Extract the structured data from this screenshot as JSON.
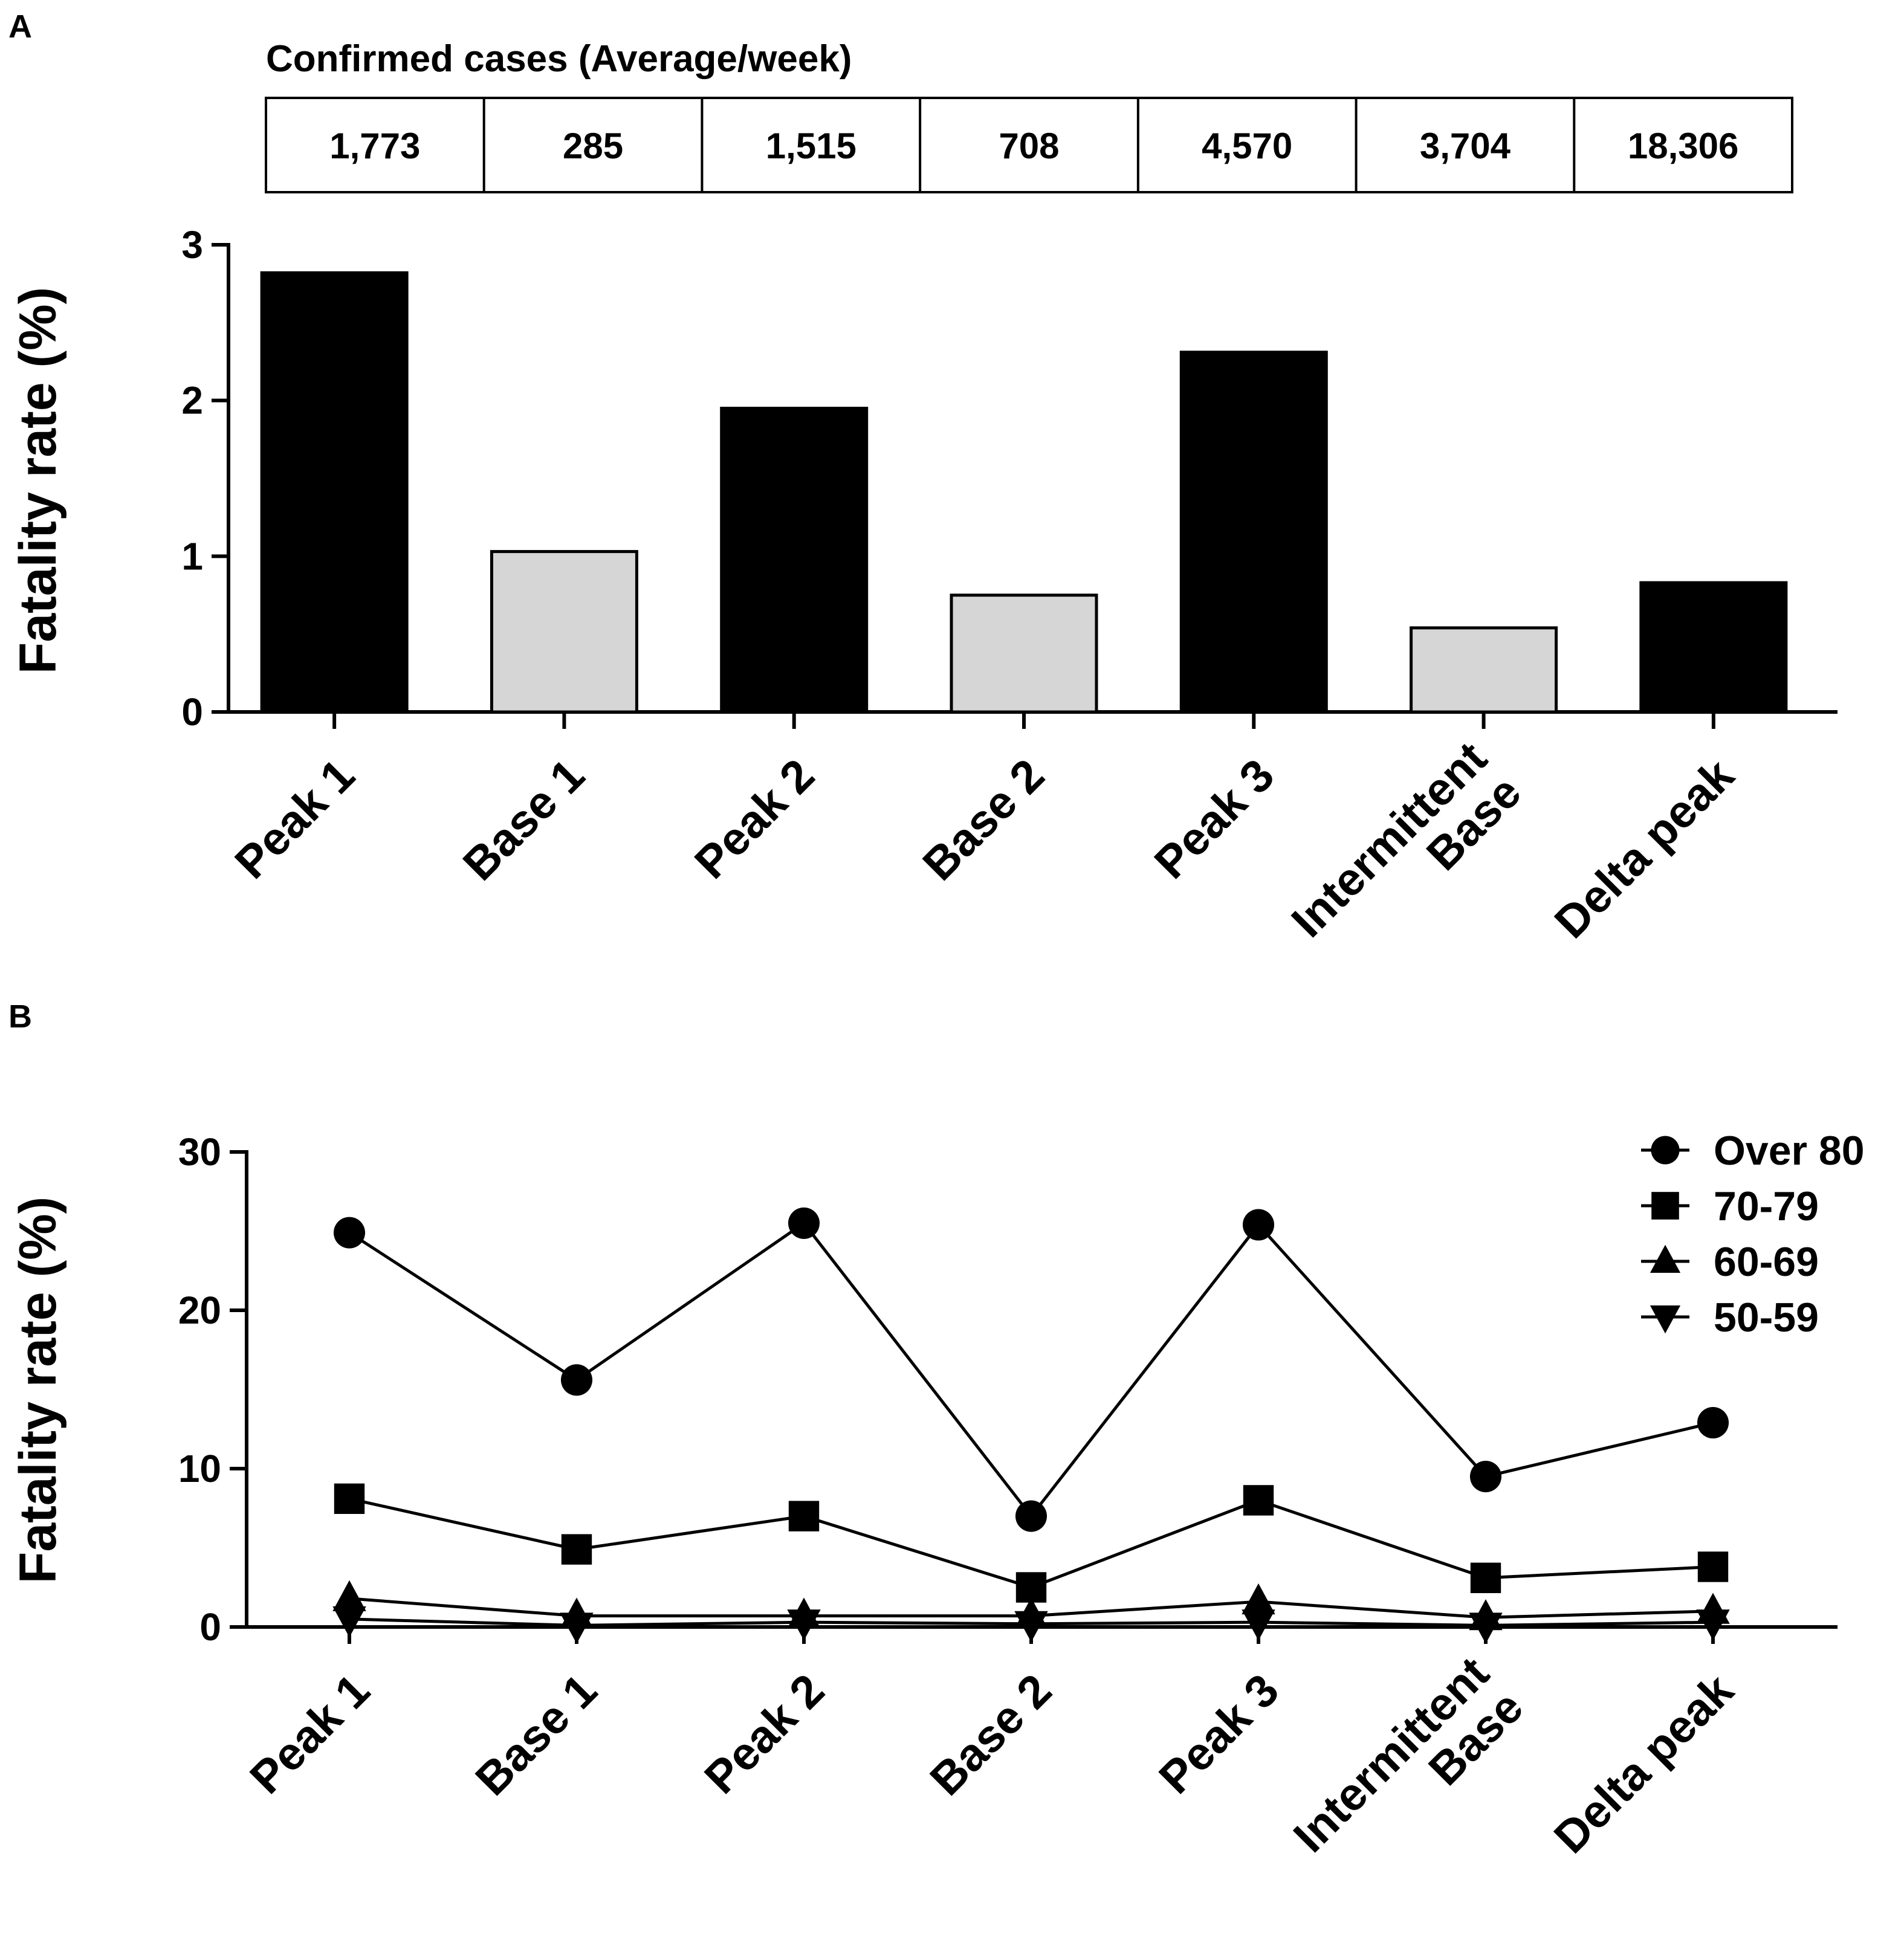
{
  "figure": {
    "panel_a_label": "A",
    "panel_b_label": "B",
    "table_title": "Confirmed cases (Average/week)",
    "confirmed_cases": [
      "1,773",
      "285",
      "1,515",
      "708",
      "4,570",
      "3,704",
      "18,306"
    ]
  },
  "chart_data": [
    {
      "type": "bar",
      "panel": "A",
      "ylabel": "Fatality rate (%)",
      "xlabel": "",
      "ylim": [
        0,
        3
      ],
      "yticks": [
        "0",
        "1",
        "2",
        "3"
      ],
      "categories": [
        [
          "Peak 1"
        ],
        [
          "Base 1"
        ],
        [
          "Peak 2"
        ],
        [
          "Base 2"
        ],
        [
          "Peak 3"
        ],
        [
          "Intermittent",
          "Base"
        ],
        [
          "Delta peak"
        ]
      ],
      "values": [
        2.82,
        1.03,
        1.95,
        0.75,
        2.31,
        0.54,
        0.83
      ],
      "bar_colors": [
        "#000000",
        "#d6d6d6",
        "#000000",
        "#d6d6d6",
        "#000000",
        "#d6d6d6",
        "#000000"
      ]
    },
    {
      "type": "line",
      "panel": "B",
      "ylabel": "Fatality rate (%)",
      "xlabel": "",
      "ylim": [
        0,
        30
      ],
      "yticks": [
        "0",
        "10",
        "20",
        "30"
      ],
      "categories": [
        [
          "Peak 1"
        ],
        [
          "Base 1"
        ],
        [
          "Peak 2"
        ],
        [
          "Base 2"
        ],
        [
          "Peak 3"
        ],
        [
          "Intermittent",
          "Base"
        ],
        [
          "Delta peak"
        ]
      ],
      "legend_position": "top-right",
      "series": [
        {
          "name": "Over 80",
          "marker": "circle",
          "values": [
            24.9,
            15.6,
            25.5,
            7.0,
            25.4,
            9.5,
            12.9
          ]
        },
        {
          "name": "70-79",
          "marker": "square",
          "values": [
            8.1,
            4.9,
            7.0,
            2.5,
            8.0,
            3.1,
            3.8
          ]
        },
        {
          "name": "60-69",
          "marker": "triangle-up",
          "values": [
            1.8,
            0.7,
            0.7,
            0.7,
            1.6,
            0.6,
            1.0
          ]
        },
        {
          "name": "50-59",
          "marker": "triangle-down",
          "values": [
            0.5,
            0.1,
            0.3,
            0.2,
            0.3,
            0.1,
            0.3
          ]
        }
      ]
    }
  ]
}
